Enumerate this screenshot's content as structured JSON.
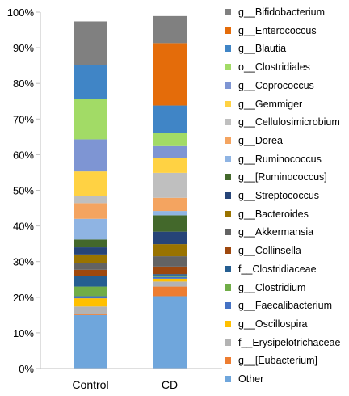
{
  "chart_data": {
    "type": "bar",
    "stacked": true,
    "percent": true,
    "categories": [
      "Control",
      "CD"
    ],
    "ylim": [
      0,
      100
    ],
    "yticks": [
      "0%",
      "10%",
      "20%",
      "30%",
      "40%",
      "50%",
      "60%",
      "70%",
      "80%",
      "90%",
      "100%"
    ],
    "legend_position": "right",
    "grid": false,
    "series": [
      {
        "name": "Other",
        "color": "#6fa6dc",
        "values": [
          15.0,
          20.3
        ]
      },
      {
        "name": "g__[Eubacterium]",
        "color": "#ed7d31",
        "values": [
          0.4,
          2.7
        ]
      },
      {
        "name": "f__Erysipelotrichaceae",
        "color": "#b3b3b3",
        "values": [
          2.0,
          1.4
        ]
      },
      {
        "name": "g__Oscillospira",
        "color": "#ffc000",
        "values": [
          2.3,
          0.8
        ]
      },
      {
        "name": "g__Faecalibacterium",
        "color": "#4472c4",
        "values": [
          0.6,
          0.5
        ]
      },
      {
        "name": "g__Clostridium",
        "color": "#70ad47",
        "values": [
          2.7,
          0.4
        ]
      },
      {
        "name": "f__Clostridiaceae",
        "color": "#255e91",
        "values": [
          2.9,
          0.4
        ]
      },
      {
        "name": "g__Collinsella",
        "color": "#9e480e",
        "values": [
          1.8,
          2.1
        ]
      },
      {
        "name": "g__Akkermansia",
        "color": "#636363",
        "values": [
          2.0,
          2.9
        ]
      },
      {
        "name": "g__Bacteroides",
        "color": "#997300",
        "values": [
          2.3,
          3.4
        ]
      },
      {
        "name": "g__Streptococcus",
        "color": "#264478",
        "values": [
          2.0,
          3.5
        ]
      },
      {
        "name": "g__[Ruminococcus]",
        "color": "#43682b",
        "values": [
          2.2,
          4.6
        ]
      },
      {
        "name": "g__Ruminococcus",
        "color": "#8fb4e3",
        "values": [
          5.8,
          1.2
        ]
      },
      {
        "name": "g__Dorea",
        "color": "#f4a460",
        "values": [
          4.4,
          3.7
        ]
      },
      {
        "name": "g__Cellulosimicrobium",
        "color": "#bfbfbf",
        "values": [
          1.9,
          7.0
        ]
      },
      {
        "name": "g__Gemmiger",
        "color": "#ffd243",
        "values": [
          7.0,
          4.1
        ]
      },
      {
        "name": "g__Coprococcus",
        "color": "#7e95d3",
        "values": [
          9.0,
          3.4
        ]
      },
      {
        "name": "o__Clostridiales",
        "color": "#a2db66",
        "values": [
          11.4,
          3.6
        ]
      },
      {
        "name": "g__Blautia",
        "color": "#4085c6",
        "values": [
          9.5,
          7.8
        ]
      },
      {
        "name": "g__Enterococcus",
        "color": "#e46c0a",
        "values": [
          0.0,
          17.5
        ]
      },
      {
        "name": "g__Bifidobacterium",
        "color": "#808080",
        "values": [
          12.2,
          7.6
        ]
      }
    ]
  }
}
